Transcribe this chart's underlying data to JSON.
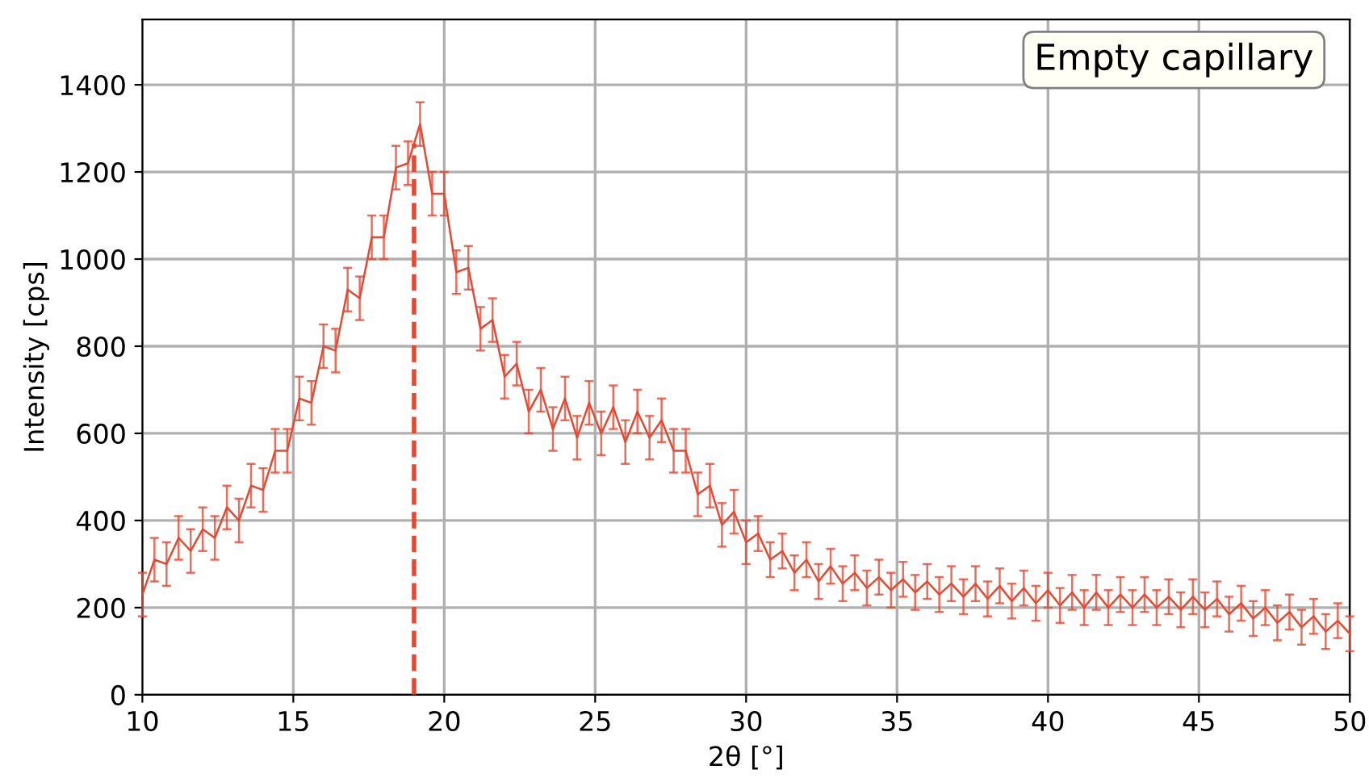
{
  "chart_data": {
    "type": "line",
    "xlabel": "2θ [°]",
    "ylabel": "Intensity [cps]",
    "annotations": [
      "Empty capillary"
    ],
    "xlim": [
      10,
      50
    ],
    "xticks": [
      10,
      15,
      20,
      25,
      30,
      35,
      40,
      45,
      50
    ],
    "ylim": [
      0,
      1550
    ],
    "yticks": [
      0,
      200,
      400,
      600,
      800,
      1000,
      1200,
      1400
    ],
    "grid": true,
    "marker": "none",
    "line_style": "solid",
    "ref_lines": [
      {
        "axis": "x",
        "value": 19,
        "color": "#e34a33",
        "line_style": "dashed"
      }
    ],
    "x": [
      10,
      10.4,
      10.8,
      11.2,
      11.6,
      12,
      12.4,
      12.8,
      13.2,
      13.6,
      14,
      14.4,
      14.8,
      15.2,
      15.6,
      16,
      16.4,
      16.8,
      17.2,
      17.6,
      18,
      18.4,
      18.8,
      19.2,
      19.6,
      20,
      20.4,
      20.8,
      21.2,
      21.6,
      22,
      22.4,
      22.8,
      23.2,
      23.6,
      24,
      24.4,
      24.8,
      25.2,
      25.6,
      26,
      26.4,
      26.8,
      27.2,
      27.6,
      28,
      28.4,
      28.8,
      29.2,
      29.6,
      30,
      30.4,
      30.8,
      31.2,
      31.6,
      32,
      32.4,
      32.8,
      33.2,
      33.6,
      34,
      34.4,
      34.8,
      35.2,
      35.6,
      36,
      36.4,
      36.8,
      37.2,
      37.6,
      38,
      38.4,
      38.8,
      39.2,
      39.6,
      40,
      40.4,
      40.8,
      41.2,
      41.6,
      42,
      42.4,
      42.8,
      43.2,
      43.6,
      44,
      44.4,
      44.8,
      45.2,
      45.6,
      46,
      46.4,
      46.8,
      47.2,
      47.6,
      48,
      48.4,
      48.8,
      49.2,
      49.6,
      50
    ],
    "series": [
      {
        "color": "#e34a33",
        "values": [
          230,
          310,
          300,
          360,
          330,
          380,
          360,
          430,
          400,
          480,
          470,
          560,
          560,
          680,
          670,
          800,
          790,
          930,
          910,
          1050,
          1050,
          1210,
          1220,
          1310,
          1150,
          1150,
          970,
          980,
          840,
          860,
          730,
          760,
          650,
          700,
          610,
          680,
          590,
          670,
          600,
          660,
          580,
          650,
          590,
          630,
          560,
          560,
          460,
          480,
          390,
          420,
          350,
          370,
          310,
          330,
          280,
          310,
          260,
          295,
          255,
          280,
          245,
          270,
          240,
          265,
          235,
          260,
          230,
          255,
          225,
          255,
          220,
          250,
          215,
          245,
          210,
          240,
          205,
          235,
          200,
          235,
          200,
          230,
          200,
          230,
          200,
          225,
          195,
          225,
          195,
          220,
          185,
          210,
          175,
          200,
          165,
          190,
          155,
          180,
          145,
          170,
          140
        ],
        "errors": [
          50,
          50,
          50,
          50,
          50,
          50,
          50,
          50,
          50,
          50,
          50,
          50,
          50,
          50,
          50,
          50,
          50,
          50,
          50,
          50,
          50,
          50,
          50,
          50,
          50,
          50,
          50,
          50,
          50,
          50,
          50,
          50,
          50,
          50,
          50,
          50,
          50,
          50,
          50,
          50,
          50,
          50,
          50,
          50,
          50,
          50,
          50,
          50,
          50,
          50,
          50,
          40,
          40,
          40,
          40,
          40,
          40,
          40,
          40,
          40,
          40,
          40,
          40,
          40,
          40,
          40,
          40,
          40,
          40,
          40,
          40,
          40,
          40,
          40,
          40,
          40,
          40,
          40,
          40,
          40,
          40,
          40,
          40,
          40,
          40,
          40,
          40,
          40,
          40,
          40,
          40,
          40,
          40,
          40,
          40,
          40,
          40,
          40,
          40,
          40,
          40
        ]
      }
    ]
  }
}
